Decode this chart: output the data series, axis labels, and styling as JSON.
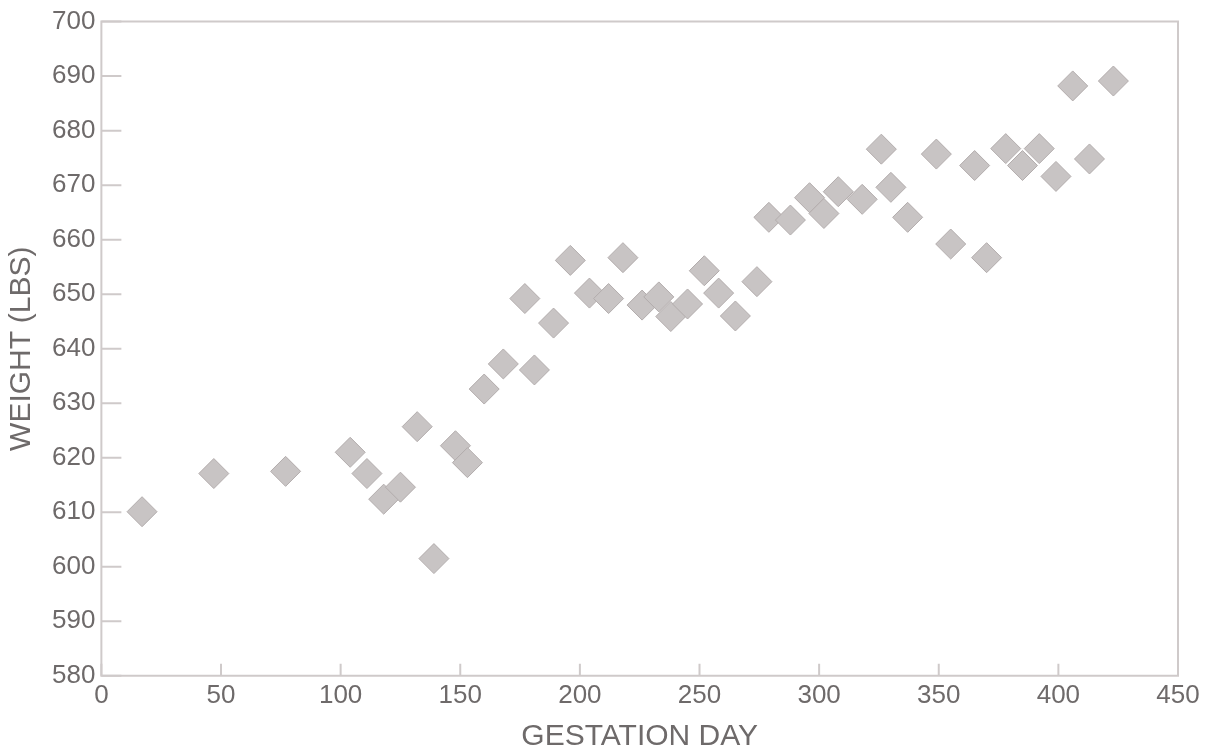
{
  "chart_data": {
    "type": "scatter",
    "xlabel": "GESTATION DAY",
    "ylabel": "WEIGHT (LBS)",
    "marker": "diamond",
    "xlim": [
      0,
      450
    ],
    "xticks": [
      0,
      50,
      100,
      150,
      200,
      250,
      300,
      350,
      400,
      450
    ],
    "ylim": [
      580,
      700
    ],
    "yticks": [
      580,
      590,
      600,
      610,
      620,
      630,
      640,
      650,
      660,
      670,
      680,
      690,
      700
    ],
    "series": [
      {
        "color": "#c8c4c4",
        "x": [
          17,
          47,
          77,
          104,
          111,
          118,
          125,
          132,
          139,
          148,
          153,
          160,
          168,
          181,
          189,
          177,
          196,
          204,
          212,
          218,
          226,
          233,
          238,
          245,
          252,
          258,
          265,
          274,
          279,
          288,
          296,
          302,
          308,
          318,
          326,
          330,
          337,
          349,
          355,
          365,
          370,
          378,
          385,
          392,
          399,
          406,
          413,
          423
        ],
        "values": [
          610.1,
          617.1,
          617.5,
          621.0,
          617.1,
          612.4,
          614.6,
          625.7,
          601.5,
          622.2,
          619.1,
          632.6,
          637.2,
          636.1,
          644.7,
          649.2,
          656.2,
          650.2,
          649.2,
          656.7,
          648.0,
          649.5,
          645.9,
          648.2,
          654.3,
          650.2,
          646.0,
          652.3,
          664.1,
          663.6,
          667.7,
          664.8,
          668.8,
          667.4,
          676.6,
          669.6,
          664.1,
          675.7,
          659.2,
          673.6,
          656.7,
          676.7,
          673.6,
          676.7,
          671.6,
          688.2,
          674.8,
          689.1
        ]
      }
    ]
  }
}
